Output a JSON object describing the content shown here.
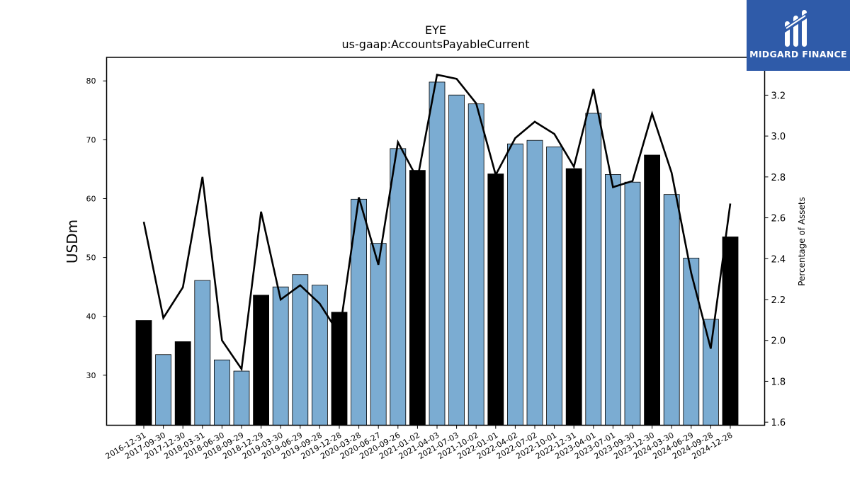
{
  "brand": {
    "name": "MIDGARD FINANCE",
    "color": "#2f5ba9"
  },
  "chart_data": {
    "type": "bar",
    "title": "EYE",
    "subtitle": "us-gaap:AccountsPayableCurrent",
    "ylabel": "USDm",
    "y2label": "Percentage of Assets",
    "ylim": [
      21.5,
      84
    ],
    "y2lim": [
      1.585,
      3.385
    ],
    "yticks": [
      30,
      40,
      50,
      60,
      70,
      80
    ],
    "y2ticks": [
      1.6,
      1.8,
      2.0,
      2.2,
      2.4,
      2.6,
      2.8,
      3.0,
      3.2
    ],
    "categories": [
      "2016-12-31",
      "2017-09-30",
      "2017-12-30",
      "2018-03-31",
      "2018-06-30",
      "2018-09-29",
      "2018-12-29",
      "2019-03-30",
      "2019-06-29",
      "2019-09-28",
      "2019-12-28",
      "2020-03-28",
      "2020-06-27",
      "2020-09-26",
      "2021-01-02",
      "2021-04-03",
      "2021-07-03",
      "2021-10-02",
      "2022-01-01",
      "2022-04-02",
      "2022-07-02",
      "2022-10-01",
      "2022-12-31",
      "2023-04-01",
      "2023-07-01",
      "2023-09-30",
      "2023-12-30",
      "2024-03-30",
      "2024-06-29",
      "2024-09-28",
      "2024-12-28"
    ],
    "series": [
      {
        "values": [
          39.3,
          33.5,
          35.7,
          46.1,
          32.6,
          30.7,
          43.6,
          45.0,
          47.1,
          45.3,
          40.7,
          59.9,
          52.4,
          68.5,
          64.8,
          79.8,
          77.6,
          76.1,
          64.2,
          69.3,
          69.9,
          68.8,
          65.1,
          74.5,
          64.1,
          62.8,
          67.4,
          60.7,
          49.9,
          39.5,
          53.5
        ],
        "highlight": [
          true,
          false,
          true,
          false,
          false,
          false,
          true,
          false,
          false,
          false,
          true,
          false,
          false,
          false,
          true,
          false,
          false,
          false,
          true,
          false,
          false,
          false,
          true,
          false,
          false,
          false,
          true,
          false,
          false,
          false,
          true
        ]
      },
      {
        "axis": "right",
        "type": "line",
        "values": [
          2.58,
          2.11,
          2.26,
          2.8,
          2.0,
          1.86,
          2.63,
          2.2,
          2.27,
          2.18,
          2.03,
          2.7,
          2.37,
          2.97,
          2.79,
          3.3,
          3.28,
          3.16,
          2.81,
          2.99,
          3.07,
          3.01,
          2.85,
          3.23,
          2.75,
          2.78,
          3.11,
          2.82,
          2.33,
          1.96,
          2.67
        ]
      }
    ],
    "colors": {
      "bar": "#7bacd2",
      "bar_highlight": "#000000",
      "line": "#000000"
    }
  }
}
